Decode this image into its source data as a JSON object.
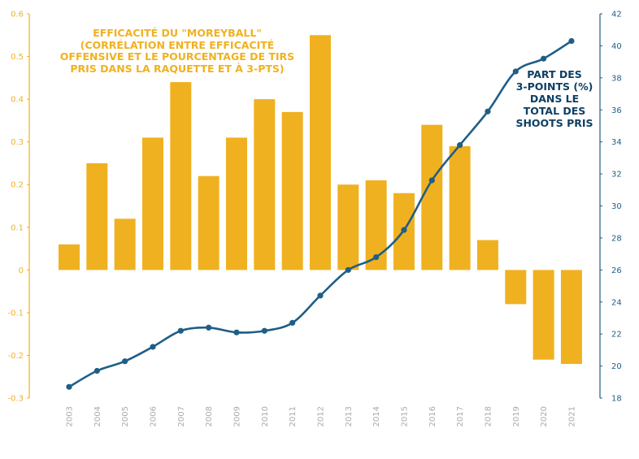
{
  "chart_data": {
    "type": "bar",
    "categories": [
      "2003",
      "2004",
      "2005",
      "2006",
      "2007",
      "2008",
      "2009",
      "2010",
      "2011",
      "2012",
      "2013",
      "2014",
      "2015",
      "2016",
      "2017",
      "2018",
      "2019",
      "2020",
      "2021"
    ],
    "series": [
      {
        "name": "Efficacité du \"Moreyball\"",
        "axis": "left",
        "chart_type": "bar",
        "color": "#f0b120",
        "values": [
          0.06,
          0.25,
          0.12,
          0.31,
          0.44,
          0.22,
          0.31,
          0.4,
          0.37,
          0.55,
          0.2,
          0.21,
          0.18,
          0.34,
          0.29,
          0.07,
          -0.08,
          -0.21,
          -0.22
        ]
      },
      {
        "name": "Part des 3-points (%) dans le total des shoots pris",
        "axis": "right",
        "chart_type": "line",
        "color": "#1f5e86",
        "values": [
          18.7,
          19.7,
          20.3,
          21.2,
          22.2,
          22.4,
          22.1,
          22.2,
          22.7,
          24.4,
          26.0,
          26.8,
          28.5,
          31.6,
          33.8,
          35.9,
          38.4,
          39.2,
          40.3
        ]
      }
    ],
    "ylim_left": [
      -0.3,
      0.6
    ],
    "ylim_right": [
      18,
      42
    ],
    "yticks_left": [
      "-0.3",
      "-0.2",
      "-0.1",
      "0",
      "0.1",
      "0.2",
      "0.3",
      "0.4",
      "0.5",
      "0.6"
    ],
    "yticks_right": [
      "18",
      "20",
      "22",
      "24",
      "26",
      "28",
      "30",
      "32",
      "34",
      "36",
      "38",
      "40",
      "42"
    ],
    "annotation_left": {
      "lines": [
        "Efficacité du \"Moreyball\"",
        "(corrélation entre efficacité",
        "offensive et le pourcentage de tirs",
        "pris dans la raquette et à 3-pts)"
      ]
    },
    "annotation_right": {
      "lines": [
        "Part des",
        "3-points (%)",
        "dans le",
        "total des",
        "shoots pris"
      ]
    },
    "colors": {
      "bar": "#f0b120",
      "line": "#1f5e86",
      "left_axis": "#f0b120",
      "right_axis": "#1f5e86",
      "x_tick": "#aaaaaa"
    }
  }
}
